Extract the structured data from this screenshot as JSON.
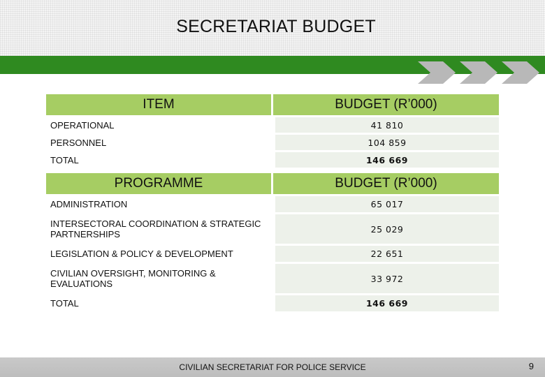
{
  "slide": {
    "title": "SECRETARIAT BUDGET",
    "footer": "CIVILIAN SECRETARIAT FOR POLICE SERVICE",
    "page_number": "9"
  },
  "colors": {
    "green_bar": "#2f8a20",
    "header_cell": "#a6cd63",
    "value_cell": "#edf1ea",
    "chevron": "#b5b5b5"
  },
  "icons": [
    "chevron-right-icon",
    "chevron-right-icon",
    "chevron-right-icon"
  ],
  "table_items": {
    "header": {
      "item": "ITEM",
      "budget": "BUDGET (R’000)"
    },
    "rows": [
      {
        "label": "OPERATIONAL",
        "value": "41 810"
      },
      {
        "label": "PERSONNEL",
        "value": "104 859"
      },
      {
        "label": "TOTAL",
        "value": "146 669"
      }
    ]
  },
  "table_programmes": {
    "header": {
      "item": "PROGRAMME",
      "budget": "BUDGET (R’000)"
    },
    "rows": [
      {
        "label": "ADMINISTRATION",
        "value": "65 017"
      },
      {
        "label": "INTERSECTORAL COORDINATION & STRATEGIC PARTNERSHIPS",
        "value": "25 029"
      },
      {
        "label": "LEGISLATION & POLICY & DEVELOPMENT",
        "value": "22 651"
      },
      {
        "label": "CIVILIAN OVERSIGHT, MONITORING & EVALUATIONS",
        "value": "33 972"
      },
      {
        "label": "TOTAL",
        "value": "146 669"
      }
    ]
  }
}
